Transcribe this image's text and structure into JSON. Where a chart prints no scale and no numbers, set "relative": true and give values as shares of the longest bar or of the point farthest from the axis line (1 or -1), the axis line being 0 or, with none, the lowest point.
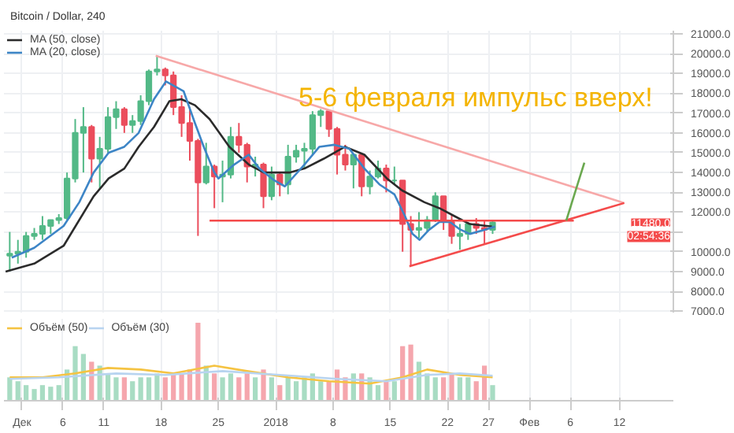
{
  "chart_data": [
    {
      "type": "candlestick",
      "title": "Bitcoin / Dollar, 240",
      "annotations": [
        "5-6 февраля импульс вверх!",
        "11480.0",
        "02:54:36"
      ],
      "x": [
        "2017-11-29T12:00",
        "2017-11-30T12:00",
        "2017-12-01T12:00",
        "2017-12-02T12:00",
        "2017-12-03T12:00",
        "2017-12-04T12:00",
        "2017-12-05T12:00",
        "2017-12-06T12:00",
        "2017-12-07T12:00",
        "2017-12-08T12:00",
        "2017-12-09T12:00",
        "2017-12-10T12:00",
        "2017-12-11T12:00",
        "2017-12-12T12:00",
        "2017-12-13T12:00",
        "2017-12-14T12:00",
        "2017-12-15T12:00",
        "2017-12-16T12:00",
        "2017-12-17T12:00",
        "2017-12-18T12:00",
        "2017-12-19T12:00",
        "2017-12-20T12:00",
        "2017-12-21T12:00",
        "2017-12-22T12:00",
        "2017-12-23T12:00",
        "2017-12-24T12:00",
        "2017-12-25T12:00",
        "2017-12-26T12:00",
        "2017-12-27T12:00",
        "2017-12-28T12:00",
        "2017-12-29T12:00",
        "2017-12-30T12:00",
        "2017-12-31T12:00",
        "2018-01-01T12:00",
        "2018-01-02T12:00",
        "2018-01-03T12:00",
        "2018-01-04T12:00",
        "2018-01-05T12:00",
        "2018-01-06T12:00",
        "2018-01-07T12:00",
        "2018-01-08T12:00",
        "2018-01-09T12:00",
        "2018-01-10T12:00",
        "2018-01-11T12:00",
        "2018-01-12T12:00",
        "2018-01-13T12:00",
        "2018-01-14T12:00",
        "2018-01-15T12:00",
        "2018-01-16T12:00",
        "2018-01-17T12:00",
        "2018-01-18T12:00",
        "2018-01-19T12:00",
        "2018-01-20T12:00",
        "2018-01-21T12:00",
        "2018-01-22T12:00",
        "2018-01-23T12:00",
        "2018-01-24T12:00",
        "2018-01-25T12:00",
        "2018-01-26T12:00",
        "2018-01-27T12:00"
      ],
      "ohlc": [
        [
          9800,
          11000,
          9000,
          9900
        ],
        [
          9900,
          10600,
          9400,
          10000
        ],
        [
          10000,
          11000,
          9700,
          10800
        ],
        [
          10800,
          11200,
          10600,
          10900
        ],
        [
          10900,
          11800,
          10600,
          11300
        ],
        [
          11300,
          11600,
          10900,
          11600
        ],
        [
          11600,
          11900,
          11400,
          11700
        ],
        [
          11700,
          14000,
          11600,
          13700
        ],
        [
          13700,
          16700,
          13500,
          16000
        ],
        [
          16000,
          17300,
          14000,
          16300
        ],
        [
          16300,
          16400,
          13500,
          14700
        ],
        [
          14700,
          15800,
          13200,
          15200
        ],
        [
          15200,
          17300,
          15000,
          16800
        ],
        [
          16800,
          17600,
          16200,
          17200
        ],
        [
          17200,
          17300,
          16000,
          16400
        ],
        [
          16400,
          16900,
          16000,
          16600
        ],
        [
          16600,
          17900,
          16400,
          17600
        ],
        [
          17600,
          19200,
          17400,
          19100
        ],
        [
          19100,
          19900,
          18900,
          19200
        ],
        [
          19200,
          19300,
          18400,
          18900
        ],
        [
          18900,
          19100,
          16900,
          17300
        ],
        [
          17300,
          17900,
          15800,
          16500
        ],
        [
          16500,
          17300,
          14600,
          15600
        ],
        [
          15600,
          15700,
          10800,
          13500
        ],
        [
          13500,
          15500,
          13400,
          14300
        ],
        [
          14300,
          14400,
          12200,
          13800
        ],
        [
          13800,
          14600,
          12500,
          13900
        ],
        [
          13900,
          16300,
          13700,
          15800
        ],
        [
          15800,
          16500,
          15000,
          15400
        ],
        [
          15400,
          15500,
          13500,
          14300
        ],
        [
          14300,
          14800,
          13800,
          14400
        ],
        [
          14400,
          14500,
          12200,
          12800
        ],
        [
          12800,
          14300,
          12600,
          13900
        ],
        [
          13900,
          14000,
          12800,
          13400
        ],
        [
          13400,
          15400,
          12900,
          14800
        ],
        [
          14800,
          15400,
          14500,
          15100
        ],
        [
          15100,
          15500,
          14200,
          15200
        ],
        [
          15200,
          17100,
          14900,
          16900
        ],
        [
          16900,
          17200,
          16300,
          17100
        ],
        [
          17100,
          17100,
          15800,
          16200
        ],
        [
          16200,
          16300,
          13900,
          14900
        ],
        [
          14900,
          15400,
          14100,
          14400
        ],
        [
          14400,
          14900,
          13200,
          14900
        ],
        [
          14900,
          14900,
          12800,
          13300
        ],
        [
          13300,
          14100,
          12900,
          13800
        ],
        [
          13800,
          14600,
          13700,
          14200
        ],
        [
          14200,
          14400,
          13000,
          13600
        ],
        [
          13600,
          14300,
          13400,
          13600
        ],
        [
          13600,
          13600,
          10000,
          11400
        ],
        [
          11400,
          11800,
          9300,
          11100
        ],
        [
          11100,
          12000,
          10700,
          11200
        ],
        [
          11200,
          11800,
          11000,
          11600
        ],
        [
          11600,
          13000,
          11500,
          12800
        ],
        [
          12800,
          12800,
          11100,
          11500
        ],
        [
          11500,
          11900,
          10400,
          10800
        ],
        [
          10800,
          11400,
          10100,
          10900
        ],
        [
          10900,
          11500,
          10600,
          11400
        ],
        [
          11400,
          11700,
          10900,
          11200
        ],
        [
          11200,
          11600,
          10400,
          11100
        ],
        [
          11100,
          11600,
          10900,
          11480
        ]
      ],
      "colors": [
        "#53b987",
        "#53b987",
        "#53b987",
        "#53b987",
        "#53b987",
        "#53b987",
        "#53b987",
        "#53b987",
        "#53b987",
        "#53b987",
        "#eb4d5c",
        "#53b987",
        "#53b987",
        "#53b987",
        "#eb4d5c",
        "#53b987",
        "#53b987",
        "#53b987",
        "#53b987",
        "#eb4d5c",
        "#eb4d5c",
        "#eb4d5c",
        "#eb4d5c",
        "#eb4d5c",
        "#53b987",
        "#eb4d5c",
        "#53b987",
        "#53b987",
        "#eb4d5c",
        "#eb4d5c",
        "#53b987",
        "#eb4d5c",
        "#53b987",
        "#eb4d5c",
        "#53b987",
        "#53b987",
        "#53b987",
        "#53b987",
        "#53b987",
        "#eb4d5c",
        "#eb4d5c",
        "#eb4d5c",
        "#53b987",
        "#eb4d5c",
        "#53b987",
        "#53b987",
        "#eb4d5c",
        "#53b987",
        "#eb4d5c",
        "#eb4d5c",
        "#53b987",
        "#53b987",
        "#53b987",
        "#eb4d5c",
        "#eb4d5c",
        "#53b987",
        "#53b987",
        "#eb4d5c",
        "#eb4d5c",
        "#53b987"
      ],
      "series": [
        {
          "type": "line",
          "name": "MA (50, close)",
          "color": "#2b2b2b",
          "x": [
            "2017-11-29T00:00",
            "2017-12-02T12:00",
            "2017-12-06T02:00",
            "2017-12-09T18:00",
            "2017-12-11T14:00",
            "2017-12-13T12:00",
            "2017-12-15T06:00",
            "2017-12-17T03:00",
            "2017-12-19T00:00",
            "2017-12-20T11:00",
            "2017-12-22T03:00",
            "2017-12-23T22:00",
            "2017-12-26T08:00",
            "2017-12-28T17:00",
            "2017-12-30T13:00",
            "2018-01-02T16:00",
            "2018-01-04T12:00",
            "2018-01-06T21:00",
            "2018-01-09T11:00",
            "2018-01-11T20:00",
            "2018-01-14T14:00",
            "2018-01-16T10:00",
            "2018-01-19T04:00",
            "2018-01-21T00:00",
            "2018-01-22T20:00",
            "2018-01-24T17:00",
            "2018-01-27T10:00"
          ],
          "values": [
            9000,
            9400,
            10300,
            12800,
            13700,
            14200,
            15300,
            16300,
            17600,
            17700,
            17400,
            16700,
            15300,
            14400,
            14000,
            14000,
            14200,
            14700,
            15300,
            14900,
            13700,
            13100,
            12500,
            12200,
            11800,
            11400,
            11270
          ]
        },
        {
          "type": "line",
          "name": "MA (20, close)",
          "color": "#3d85c6",
          "x": [
            "2017-11-29T18:00",
            "2017-12-02T12:00",
            "2017-12-06T02:00",
            "2017-12-08T00:00",
            "2017-12-09T18:00",
            "2017-12-11T14:00",
            "2017-12-13T12:00",
            "2017-12-15T06:00",
            "2017-12-17T03:00",
            "2017-12-18T14:00",
            "2017-12-20T18:00",
            "2017-12-22T03:00",
            "2017-12-23T05:00",
            "2017-12-24T12:00",
            "2017-12-25T00:00",
            "2017-12-26T22:00",
            "2017-12-28T17:00",
            "2017-12-30T00:00",
            "2017-12-31T20:00",
            "2018-01-02T03:00",
            "2018-01-04T12:00",
            "2018-01-06T08:00",
            "2018-01-08T04:00",
            "2018-01-10T00:00",
            "2018-01-11T20:00",
            "2018-01-13T16:00",
            "2018-01-15T12:00",
            "2018-01-16T19:00",
            "2018-01-17T17:00",
            "2018-01-18T14:00",
            "2018-01-19T17:00",
            "2018-01-21T00:00",
            "2018-01-22T07:00",
            "2018-01-23T10:00",
            "2018-01-24T17:00",
            "2018-01-26T12:00",
            "2018-01-27T19:00"
          ],
          "values": [
            9700,
            10200,
            11300,
            12500,
            14000,
            15000,
            15300,
            16000,
            17700,
            18600,
            18100,
            16500,
            15300,
            14000,
            13700,
            14400,
            14900,
            14200,
            13600,
            13300,
            14400,
            15300,
            15400,
            15200,
            14200,
            13400,
            12900,
            11800,
            10900,
            10600,
            11100,
            11500,
            11500,
            11150,
            10900,
            11100,
            11270
          ]
        },
        {
          "type": "line",
          "color": "#f7a8a8",
          "x": [
            "2017-12-17T08:00",
            "2018-02-12T14:00"
          ],
          "values": [
            19900,
            12460
          ]
        },
        {
          "type": "line",
          "color": "#f44b4b",
          "x": [
            "2018-01-17T08:00",
            "2018-02-12T14:00"
          ],
          "values": [
            9270,
            12460
          ]
        },
        {
          "type": "line",
          "color": "#f44b4b",
          "x": [
            "2017-12-23T22:00",
            "2018-02-06T10:00"
          ],
          "values": [
            11570,
            11570
          ]
        },
        {
          "type": "line",
          "color": "#6aa84f",
          "x": [
            "2018-02-05T12:00",
            "2018-02-07T17:00"
          ],
          "values": [
            11580,
            14500
          ]
        }
      ],
      "xlim": [
        "2017-11-28T19:00",
        "2018-02-18T14:00"
      ],
      "xticks": [
        {
          "value": "2017-12-01",
          "label": null
        },
        {
          "value": "2017-12-06",
          "label": null
        },
        {
          "value": "2017-12-11",
          "label": null
        },
        {
          "value": "2017-12-18",
          "label": null
        },
        {
          "value": "2017-12-25",
          "label": null
        },
        {
          "value": "2018-01-01",
          "label": null
        },
        {
          "value": "2018-01-08",
          "label": null
        },
        {
          "value": "2018-01-15",
          "label": null
        },
        {
          "value": "2018-01-22",
          "label": null
        },
        {
          "value": "2018-01-27",
          "label": null
        },
        {
          "value": "2018-02-01",
          "label": null
        },
        {
          "value": "2018-02-06",
          "label": null
        },
        {
          "value": "2018-02-12",
          "label": null
        }
      ],
      "ylim": [
        6930,
        21160
      ],
      "yticks": [
        {
          "value": 7000,
          "label": "7000.0"
        },
        {
          "value": 8000,
          "label": "8000.0"
        },
        {
          "value": 9000,
          "label": "9000.0"
        },
        {
          "value": 10000,
          "label": "10000.0"
        },
        {
          "value": 11000,
          "label": null
        },
        {
          "value": 12000,
          "label": "12000.0"
        },
        {
          "value": 13000,
          "label": "13000.0"
        },
        {
          "value": 14000,
          "label": "14000.0"
        },
        {
          "value": 15000,
          "label": "15000.0"
        },
        {
          "value": 16000,
          "label": "16000.0"
        },
        {
          "value": 17000,
          "label": "17000.0"
        },
        {
          "value": 18000,
          "label": "18000.0"
        },
        {
          "value": 19000,
          "label": "19000.0"
        },
        {
          "value": 20000,
          "label": "20000.0"
        },
        {
          "value": 21000,
          "label": "21000.0"
        }
      ],
      "grid": true,
      "legend": "top left",
      "tick_labels": "y"
    },
    {
      "type": "bar",
      "relative": true,
      "x": [
        "2017-11-29T12:00",
        "2017-11-30T12:00",
        "2017-12-01T12:00",
        "2017-12-02T12:00",
        "2017-12-03T12:00",
        "2017-12-04T12:00",
        "2017-12-05T12:00",
        "2017-12-06T12:00",
        "2017-12-07T12:00",
        "2017-12-08T12:00",
        "2017-12-09T12:00",
        "2017-12-10T12:00",
        "2017-12-11T12:00",
        "2017-12-12T12:00",
        "2017-12-13T12:00",
        "2017-12-14T12:00",
        "2017-12-15T12:00",
        "2017-12-16T12:00",
        "2017-12-17T12:00",
        "2017-12-18T12:00",
        "2017-12-19T12:00",
        "2017-12-20T12:00",
        "2017-12-21T12:00",
        "2017-12-22T12:00",
        "2017-12-23T12:00",
        "2017-12-24T12:00",
        "2017-12-25T12:00",
        "2017-12-26T12:00",
        "2017-12-27T12:00",
        "2017-12-28T12:00",
        "2017-12-29T12:00",
        "2017-12-30T12:00",
        "2017-12-31T12:00",
        "2018-01-01T12:00",
        "2018-01-02T12:00",
        "2018-01-03T12:00",
        "2018-01-04T12:00",
        "2018-01-05T12:00",
        "2018-01-06T12:00",
        "2018-01-07T12:00",
        "2018-01-08T12:00",
        "2018-01-09T12:00",
        "2018-01-10T12:00",
        "2018-01-11T12:00",
        "2018-01-12T12:00",
        "2018-01-13T12:00",
        "2018-01-14T12:00",
        "2018-01-15T12:00",
        "2018-01-16T12:00",
        "2018-01-17T12:00",
        "2018-01-18T12:00",
        "2018-01-19T12:00",
        "2018-01-20T12:00",
        "2018-01-21T12:00",
        "2018-01-22T12:00",
        "2018-01-23T12:00",
        "2018-01-24T12:00",
        "2018-01-25T12:00",
        "2018-01-26T12:00",
        "2018-01-27T12:00"
      ],
      "series": [
        {
          "type": "bar",
          "values": [
            0.3,
            0.25,
            0.2,
            0.15,
            0.2,
            0.18,
            0.2,
            0.4,
            0.7,
            0.6,
            0.5,
            0.45,
            0.35,
            0.3,
            0.3,
            0.25,
            0.3,
            0.3,
            0.35,
            0.3,
            0.35,
            0.35,
            0.4,
            1,
            0.45,
            0.35,
            0.3,
            0.35,
            0.3,
            0.35,
            0.3,
            0.4,
            0.3,
            0.2,
            0.3,
            0.25,
            0.3,
            0.35,
            0.25,
            0.25,
            0.4,
            0.3,
            0.35,
            0.35,
            0.3,
            0.2,
            0.25,
            0.25,
            0.7,
            0.72,
            0.5,
            0.35,
            0.3,
            0.3,
            0.35,
            0.3,
            0.3,
            0.25,
            0.45,
            0.2
          ],
          "colors": [
            "#a8dcc3",
            "#a8dcc3",
            "#a8dcc3",
            "#a8dcc3",
            "#a8dcc3",
            "#a8dcc3",
            "#a8dcc3",
            "#a8dcc3",
            "#a8dcc3",
            "#a8dcc3",
            "#f5a6ad",
            "#a8dcc3",
            "#a8dcc3",
            "#a8dcc3",
            "#f5a6ad",
            "#a8dcc3",
            "#a8dcc3",
            "#a8dcc3",
            "#a8dcc3",
            "#f5a6ad",
            "#f5a6ad",
            "#f5a6ad",
            "#f5a6ad",
            "#f5a6ad",
            "#a8dcc3",
            "#f5a6ad",
            "#a8dcc3",
            "#a8dcc3",
            "#f5a6ad",
            "#f5a6ad",
            "#a8dcc3",
            "#f5a6ad",
            "#a8dcc3",
            "#f5a6ad",
            "#a8dcc3",
            "#a8dcc3",
            "#a8dcc3",
            "#a8dcc3",
            "#a8dcc3",
            "#f5a6ad",
            "#f5a6ad",
            "#f5a6ad",
            "#a8dcc3",
            "#f5a6ad",
            "#a8dcc3",
            "#a8dcc3",
            "#f5a6ad",
            "#a8dcc3",
            "#f5a6ad",
            "#f5a6ad",
            "#a8dcc3",
            "#a8dcc3",
            "#a8dcc3",
            "#f5a6ad",
            "#f5a6ad",
            "#a8dcc3",
            "#a8dcc3",
            "#f5a6ad",
            "#f5a6ad",
            "#a8dcc3"
          ]
        },
        {
          "type": "line",
          "name": "Объём (50)",
          "color": "#f5c342",
          "x": [
            "2017-11-29T12:00",
            "2017-12-03T12:00",
            "2017-12-07T12:00",
            "2017-12-11T12:00",
            "2017-12-15T12:00",
            "2017-12-19T12:00",
            "2017-12-24T12:00",
            "2017-12-28T12:00",
            "2018-01-02T12:00",
            "2018-01-07T12:00",
            "2018-01-12T12:00",
            "2018-01-16T12:00",
            "2018-01-19T12:00",
            "2018-01-23T12:00",
            "2018-01-27T12:00"
          ],
          "values": [
            0.3,
            0.3,
            0.35,
            0.42,
            0.4,
            0.35,
            0.45,
            0.38,
            0.3,
            0.25,
            0.22,
            0.3,
            0.4,
            0.33,
            0.3
          ]
        },
        {
          "type": "line",
          "name": "Объём (30)",
          "color": "#b8d4f0",
          "x": [
            "2017-11-29T12:00",
            "2017-12-05T12:00",
            "2017-12-12T12:00",
            "2017-12-18T12:00",
            "2017-12-25T12:00",
            "2018-01-01T12:00",
            "2018-01-08T12:00",
            "2018-01-14T12:00",
            "2018-01-19T12:00",
            "2018-01-23T12:00",
            "2018-01-27T12:00"
          ],
          "values": [
            0.28,
            0.3,
            0.35,
            0.33,
            0.38,
            0.33,
            0.28,
            0.25,
            0.33,
            0.35,
            0.32
          ]
        }
      ],
      "xlim": [
        "2017-11-28T19:00",
        "2018-02-18T14:00"
      ],
      "xticks": [
        {
          "value": "2017-12-01",
          "label": "Дек"
        },
        {
          "value": "2017-12-06",
          "label": "6"
        },
        {
          "value": "2017-12-11",
          "label": "11"
        },
        {
          "value": "2017-12-18",
          "label": "18"
        },
        {
          "value": "2017-12-25",
          "label": "25"
        },
        {
          "value": "2018-01-01",
          "label": "2018"
        },
        {
          "value": "2018-01-08",
          "label": "8"
        },
        {
          "value": "2018-01-15",
          "label": "15"
        },
        {
          "value": "2018-01-22",
          "label": "22"
        },
        {
          "value": "2018-01-27",
          "label": "27"
        },
        {
          "value": "2018-02-01",
          "label": "Фев"
        },
        {
          "value": "2018-02-06",
          "label": "6"
        },
        {
          "value": "2018-02-12",
          "label": "12"
        }
      ],
      "grid": true,
      "legend": "top left",
      "tick_labels": "x"
    }
  ]
}
